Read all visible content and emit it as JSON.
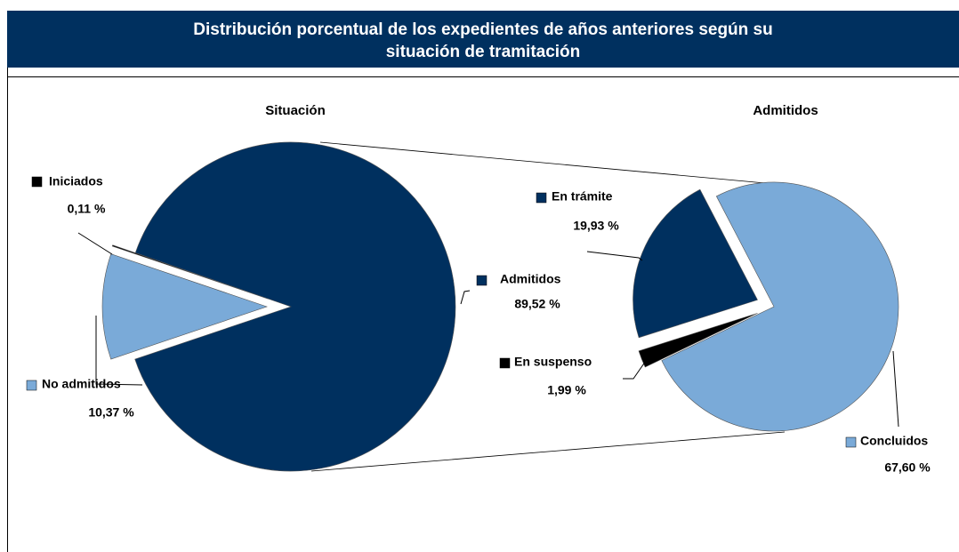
{
  "title": [
    "Distribución porcentual de los expedientes de años anteriores según su",
    "situación de tramitación"
  ],
  "chart_data": [
    {
      "type": "pie",
      "title": "Situación",
      "categories": [
        "Iniciados",
        "No admitidos",
        "Admitidos"
      ],
      "values": [
        0.11,
        10.37,
        89.52
      ],
      "value_labels": [
        "0,11 %",
        "10,37 %",
        "89,52 %"
      ],
      "colors": [
        "#000000",
        "#7aaad8",
        "#00305f"
      ]
    },
    {
      "type": "pie",
      "title": "Admitidos",
      "categories": [
        "En trámite",
        "En suspenso",
        "Concluidos"
      ],
      "values": [
        19.93,
        1.99,
        67.6
      ],
      "value_labels": [
        "19,93 %",
        "1,99 %",
        "67,60 %"
      ],
      "colors": [
        "#00305f",
        "#000000",
        "#7aaad8"
      ]
    }
  ]
}
